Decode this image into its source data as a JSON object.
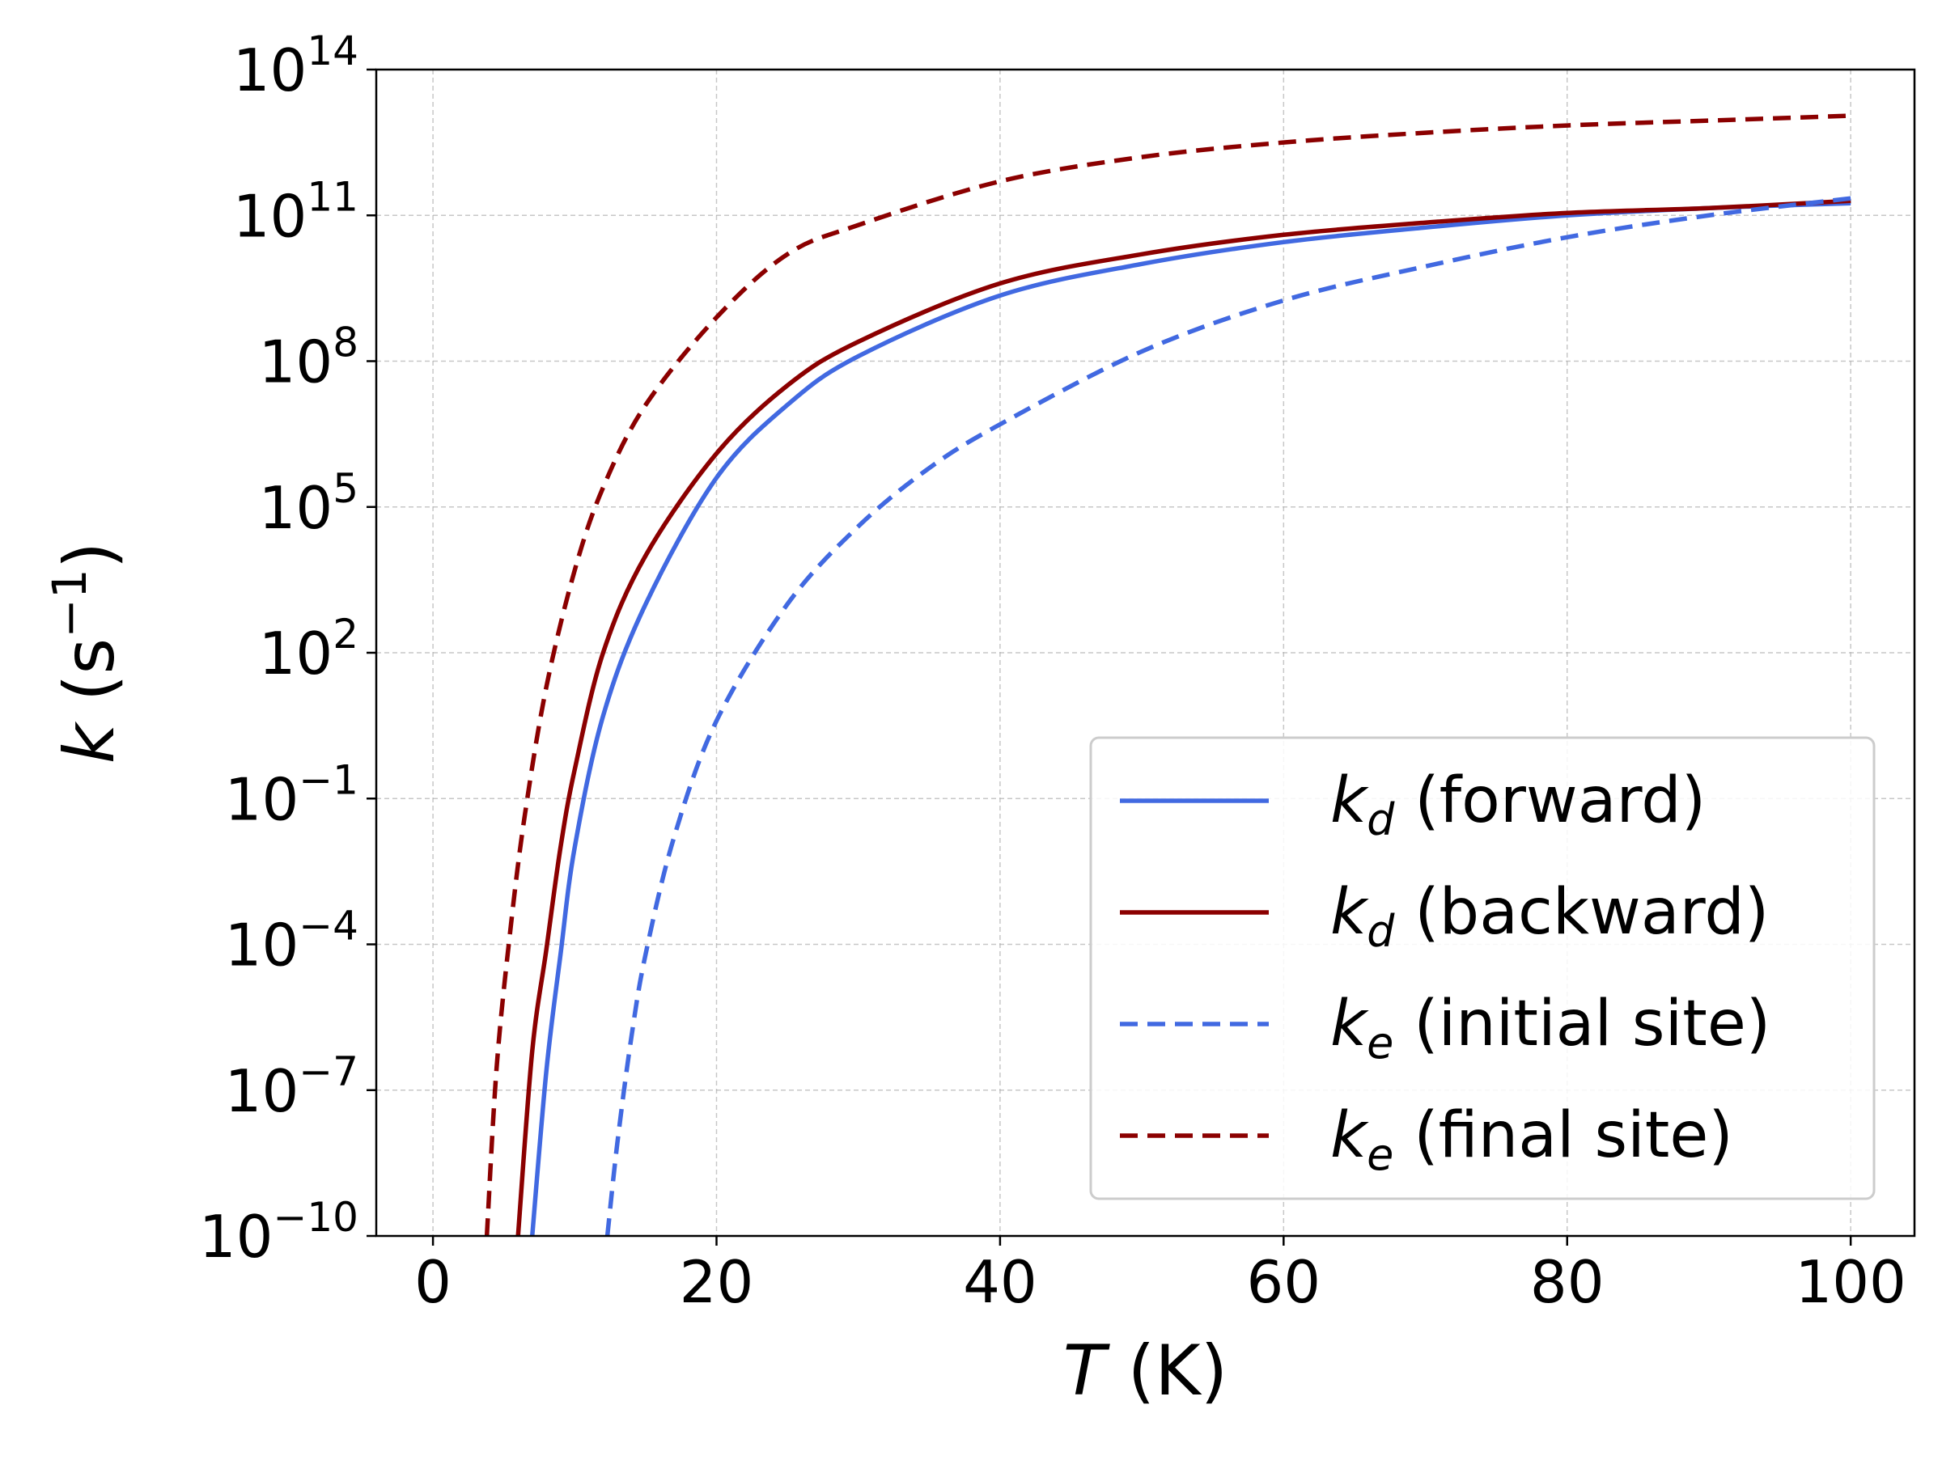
{
  "chart_data": {
    "type": "line",
    "xlabel": {
      "italic": "T",
      "rest": " (K)"
    },
    "ylabel": {
      "italic": "k",
      "rest": " (s",
      "sup": "−1",
      "close": ")"
    },
    "xlim": [
      -4,
      104.5
    ],
    "ylim_log10": [
      -10,
      14
    ],
    "y_scale": "log",
    "grid": true,
    "legend_position": "lower-right",
    "x_ticks": [
      {
        "value": 0,
        "label": "0"
      },
      {
        "value": 20,
        "label": "20"
      },
      {
        "value": 40,
        "label": "40"
      },
      {
        "value": 60,
        "label": "60"
      },
      {
        "value": 80,
        "label": "80"
      },
      {
        "value": 100,
        "label": "100"
      }
    ],
    "y_ticks": [
      {
        "exp": -10,
        "base": "10",
        "sup": "−10"
      },
      {
        "exp": -7,
        "base": "10",
        "sup": "−7"
      },
      {
        "exp": -4,
        "base": "10",
        "sup": "−4"
      },
      {
        "exp": -1,
        "base": "10",
        "sup": "−1"
      },
      {
        "exp": 2,
        "base": "10",
        "sup": "2"
      },
      {
        "exp": 5,
        "base": "10",
        "sup": "5"
      },
      {
        "exp": 8,
        "base": "10",
        "sup": "8"
      },
      {
        "exp": 11,
        "base": "10",
        "sup": "11"
      },
      {
        "exp": 14,
        "base": "10",
        "sup": "14"
      }
    ],
    "series": [
      {
        "name": "kd-forward",
        "symbol": "k",
        "subscript": "d",
        "label": "(forward)",
        "color": "#4169E1",
        "dash": false,
        "x": [
          7,
          8,
          9,
          10,
          12,
          15,
          20,
          25,
          30,
          40,
          50,
          60,
          70,
          80,
          90,
          100
        ],
        "log10_y": [
          -10,
          -6.6,
          -4.2,
          -2.0,
          0.7,
          3.0,
          5.6,
          7.1,
          8.1,
          9.35,
          10.0,
          10.45,
          10.75,
          11.0,
          11.15,
          11.25
        ]
      },
      {
        "name": "kd-backward",
        "symbol": "k",
        "subscript": "d",
        "label": "(backward)",
        "color": "#8B0000",
        "dash": false,
        "x": [
          6,
          7,
          8,
          9,
          10,
          12,
          15,
          20,
          25,
          30,
          40,
          50,
          60,
          70,
          80,
          90,
          100
        ],
        "log10_y": [
          -10,
          -6.2,
          -4.1,
          -2.0,
          -0.4,
          2.0,
          4.0,
          6.1,
          7.5,
          8.4,
          9.6,
          10.2,
          10.6,
          10.85,
          11.05,
          11.15,
          11.3
        ]
      },
      {
        "name": "ke-initial",
        "symbol": "k",
        "subscript": "e",
        "label": "(initial site)",
        "color": "#4169E1",
        "dash": true,
        "x": [
          12.3,
          13,
          14,
          15,
          17,
          20,
          25,
          30,
          35,
          40,
          50,
          60,
          70,
          80,
          90,
          100
        ],
        "log10_y": [
          -10,
          -8.1,
          -5.9,
          -4.2,
          -1.8,
          0.6,
          3.0,
          4.6,
          5.8,
          6.7,
          8.2,
          9.25,
          9.95,
          10.55,
          11.0,
          11.35
        ]
      },
      {
        "name": "ke-final",
        "symbol": "k",
        "subscript": "e",
        "label": "(final site)",
        "color": "#8B0000",
        "dash": true,
        "x": [
          3.8,
          4.5,
          5.5,
          6.5,
          8,
          10,
          12,
          15,
          20,
          25,
          30,
          40,
          50,
          60,
          70,
          80,
          90,
          100
        ],
        "log10_y": [
          -10,
          -6.5,
          -3.6,
          -1.3,
          1.3,
          3.7,
          5.4,
          7.1,
          8.9,
          10.2,
          10.8,
          11.7,
          12.2,
          12.5,
          12.7,
          12.85,
          12.95,
          13.05
        ]
      }
    ]
  }
}
